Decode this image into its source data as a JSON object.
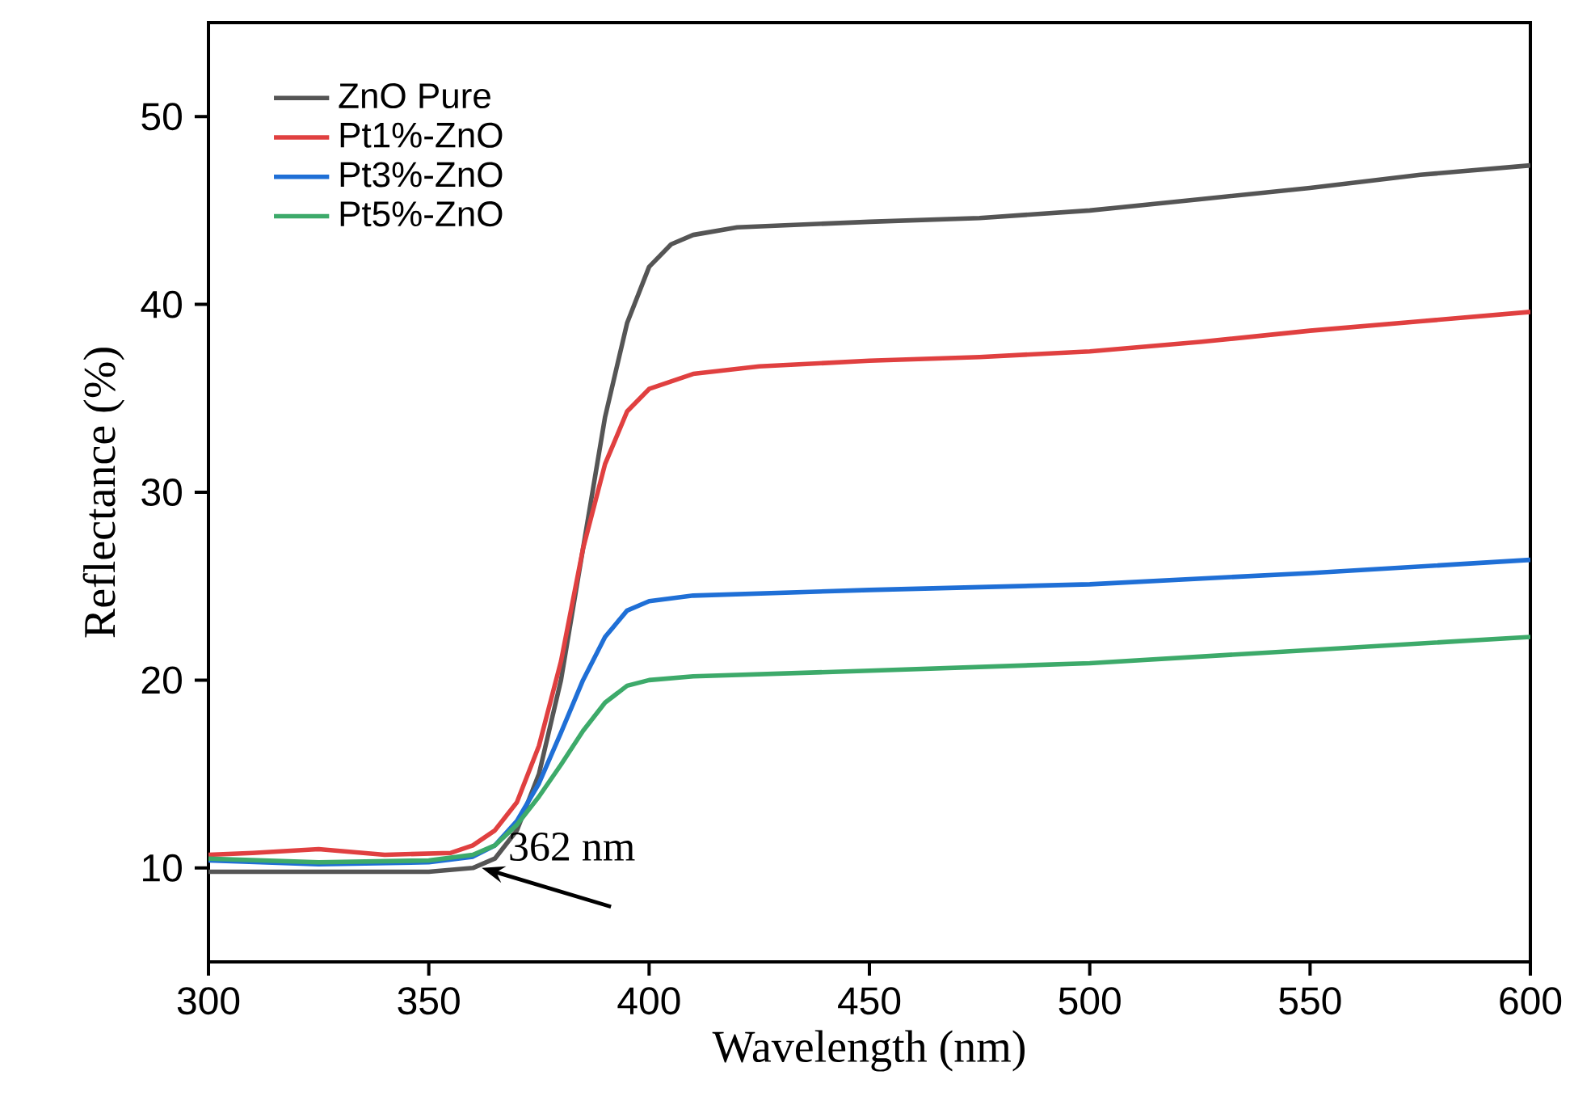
{
  "chart_data": {
    "type": "line",
    "xlabel": "Wavelength (nm)",
    "ylabel": "Reflectance (%)",
    "xlim": [
      300,
      600
    ],
    "ylim": [
      5,
      55
    ],
    "xticks": [
      300,
      350,
      400,
      450,
      500,
      550,
      600
    ],
    "yticks": [
      10,
      20,
      30,
      40,
      50
    ],
    "legend": "top left",
    "grid": false,
    "marker": "none",
    "line_style": "solid",
    "annotations": [
      {
        "text": "362 nm",
        "x": 362,
        "y": 10
      }
    ],
    "series": [
      {
        "name": "ZnO Pure",
        "color": "#555555",
        "x": [
          300,
          350,
          360,
          365,
          370,
          375,
          380,
          385,
          390,
          395,
          400,
          405,
          410,
          420,
          450,
          475,
          500,
          525,
          550,
          575,
          600
        ],
        "values": [
          9.8,
          9.8,
          10.0,
          10.5,
          12,
          15,
          20,
          27,
          34,
          39,
          42,
          43.2,
          43.7,
          44.1,
          44.4,
          44.6,
          45.0,
          45.6,
          46.2,
          46.9,
          47.4
        ]
      },
      {
        "name": "Pt1%-ZnO",
        "color": "#e04040",
        "x": [
          300,
          310,
          325,
          340,
          355,
          360,
          365,
          370,
          375,
          380,
          385,
          390,
          395,
          400,
          410,
          425,
          450,
          475,
          500,
          525,
          550,
          575,
          600
        ],
        "values": [
          10.7,
          10.8,
          11.0,
          10.7,
          10.8,
          11.2,
          12,
          13.5,
          16.5,
          21,
          27,
          31.5,
          34.3,
          35.5,
          36.3,
          36.7,
          37.0,
          37.2,
          37.5,
          38,
          38.6,
          39.1,
          39.6
        ]
      },
      {
        "name": "Pt3%-ZnO",
        "color": "#1f6fd6",
        "x": [
          300,
          325,
          350,
          360,
          365,
          370,
          375,
          380,
          385,
          390,
          395,
          400,
          410,
          450,
          500,
          550,
          600
        ],
        "values": [
          10.4,
          10.2,
          10.3,
          10.6,
          11.2,
          12.5,
          14.5,
          17.2,
          20,
          22.3,
          23.7,
          24.2,
          24.5,
          24.8,
          25.1,
          25.7,
          26.4
        ]
      },
      {
        "name": "Pt5%-ZnO",
        "color": "#3daa6a",
        "x": [
          300,
          325,
          350,
          360,
          365,
          370,
          375,
          380,
          385,
          390,
          395,
          400,
          410,
          450,
          500,
          550,
          600
        ],
        "values": [
          10.5,
          10.3,
          10.4,
          10.7,
          11.2,
          12.3,
          13.8,
          15.5,
          17.3,
          18.8,
          19.7,
          20.0,
          20.2,
          20.5,
          20.9,
          21.6,
          22.3
        ]
      }
    ]
  }
}
